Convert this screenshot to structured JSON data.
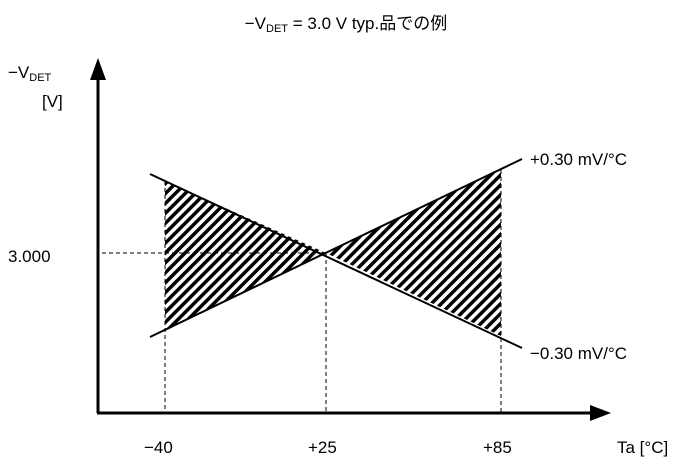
{
  "title": {
    "prefix": "−V",
    "sub": "DET",
    "suffix": " = 3.0 V typ.品での例"
  },
  "y_axis": {
    "label_prefix": "−V",
    "label_sub": "DET",
    "unit": "[V]",
    "ref_label": "3.000"
  },
  "x_axis": {
    "label": "Ta [°C]",
    "ticks": [
      "−40",
      "+25",
      "+85"
    ]
  },
  "lines": {
    "upper": "+0.30 mV/°C",
    "lower": "−0.30 mV/°C"
  },
  "colors": {
    "line": "#000000",
    "hatch": "#000000",
    "background": "#ffffff"
  }
}
